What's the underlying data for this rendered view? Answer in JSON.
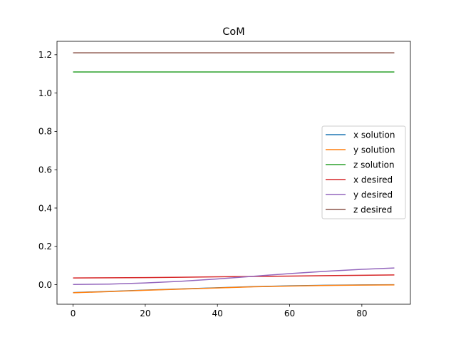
{
  "chart_data": {
    "type": "line",
    "title": "CoM",
    "xlabel": "",
    "ylabel": "",
    "xlim": [
      -4.45,
      93.45
    ],
    "ylim": [
      -0.102,
      1.27
    ],
    "xticks": [
      0,
      20,
      40,
      60,
      80
    ],
    "yticks": [
      0.0,
      0.2,
      0.4,
      0.6,
      0.8,
      1.0,
      1.2
    ],
    "ytick_labels": [
      "0.0",
      "0.2",
      "0.4",
      "0.6",
      "0.8",
      "1.0",
      "1.2"
    ],
    "grid": false,
    "legend_position": "center-right",
    "x": [
      0,
      10,
      20,
      30,
      40,
      50,
      60,
      70,
      80,
      89
    ],
    "series": [
      {
        "name": "x solution",
        "color": "#1f77b4",
        "values": [
          -0.041,
          -0.035,
          -0.028,
          -0.022,
          -0.016,
          -0.01,
          -0.006,
          -0.003,
          -0.001,
          0.0
        ]
      },
      {
        "name": "y solution",
        "color": "#ff7f0e",
        "values": [
          -0.042,
          -0.036,
          -0.029,
          -0.023,
          -0.017,
          -0.011,
          -0.007,
          -0.004,
          -0.002,
          -0.001
        ]
      },
      {
        "name": "z solution",
        "color": "#2ca02c",
        "values": [
          1.11,
          1.11,
          1.11,
          1.11,
          1.11,
          1.11,
          1.11,
          1.11,
          1.11,
          1.11
        ]
      },
      {
        "name": "x desired",
        "color": "#d62728",
        "values": [
          0.035,
          0.036,
          0.037,
          0.039,
          0.041,
          0.043,
          0.045,
          0.047,
          0.049,
          0.051
        ]
      },
      {
        "name": "y desired",
        "color": "#9467bd",
        "values": [
          0.001,
          0.003,
          0.009,
          0.018,
          0.03,
          0.044,
          0.058,
          0.07,
          0.08,
          0.087
        ]
      },
      {
        "name": "z desired",
        "color": "#8c564b",
        "values": [
          1.21,
          1.21,
          1.21,
          1.21,
          1.21,
          1.21,
          1.21,
          1.21,
          1.21,
          1.21
        ]
      }
    ]
  }
}
